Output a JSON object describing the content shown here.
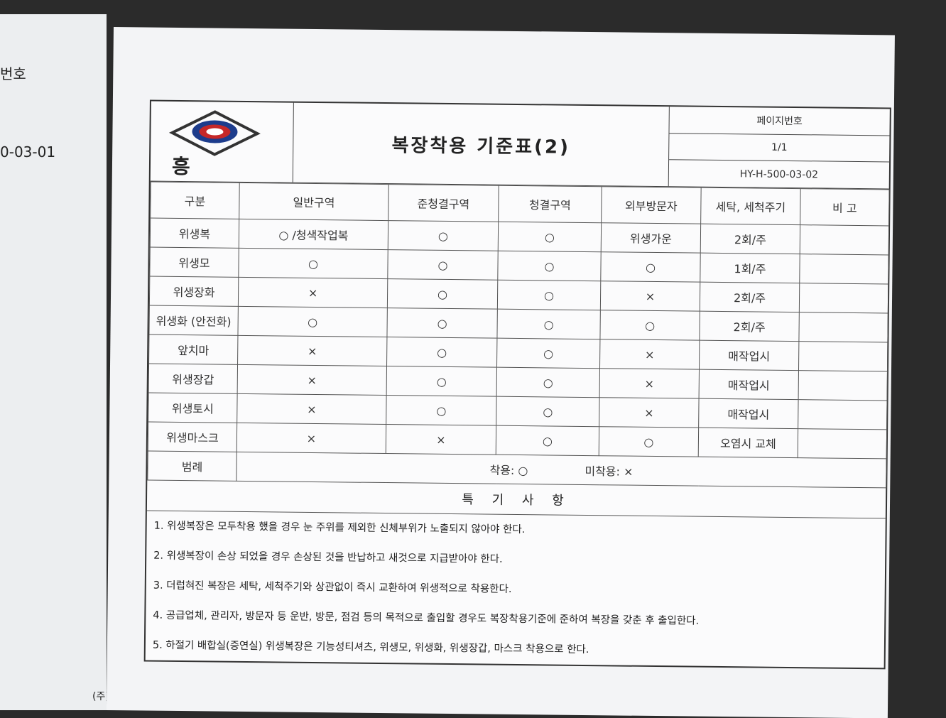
{
  "left_page": {
    "label": "번호",
    "date": "0-03-01",
    "footer": "(주)"
  },
  "header": {
    "logo_text": "흥",
    "title": "복장착용 기준표(2)",
    "page_label": "페이지번호",
    "page": "1/1",
    "doc_no": "HY-H-500-03-02"
  },
  "table": {
    "columns": [
      "구분",
      "일반구역",
      "준청결구역",
      "청결구역",
      "외부방문자",
      "세탁, 세척주기",
      "비 고"
    ],
    "rows": [
      [
        "위생복",
        "○ /청색작업복",
        "○",
        "○",
        "위생가운",
        "2회/주"
      ],
      [
        "위생모",
        "○",
        "○",
        "○",
        "○",
        "1회/주"
      ],
      [
        "위생장화",
        "×",
        "○",
        "○",
        "×",
        "2회/주"
      ],
      [
        "위생화 (안전화)",
        "○",
        "○",
        "○",
        "○",
        "2회/주"
      ],
      [
        "앞치마",
        "×",
        "○",
        "○",
        "×",
        "매작업시"
      ],
      [
        "위생장갑",
        "×",
        "○",
        "○",
        "×",
        "매작업시"
      ],
      [
        "위생토시",
        "×",
        "○",
        "○",
        "×",
        "매작업시"
      ],
      [
        "위생마스크",
        "×",
        "×",
        "○",
        "○",
        "오염시 교체"
      ]
    ],
    "legend_label": "범례",
    "legend": [
      "착용: ○",
      "미착용: ×"
    ]
  },
  "notes": {
    "title": "특 기 사 항",
    "items": [
      "1. 위생복장은 모두착용 했을 경우 눈 주위를 제외한 신체부위가 노출되지 않아야 한다.",
      "2. 위생복장이 손상 되었을 경우 손상된 것을 반납하고 새것으로 지급받아야 한다.",
      "3. 더럽혀진 복장은 세탁, 세척주기와 상관없이 즉시 교환하여 위생적으로 착용한다.",
      "4. 공급업체, 관리자, 방문자 등 운반, 방문, 점검 등의 목적으로 출입할 경우도 복장착용기준에 준하여 복장을 갖춘 후 출입한다.",
      "5. 하절기 배합실(증연실) 위생복장은 기능성티셔츠, 위생모, 위생화, 위생장갑, 마스크 착용으로 한다."
    ]
  }
}
